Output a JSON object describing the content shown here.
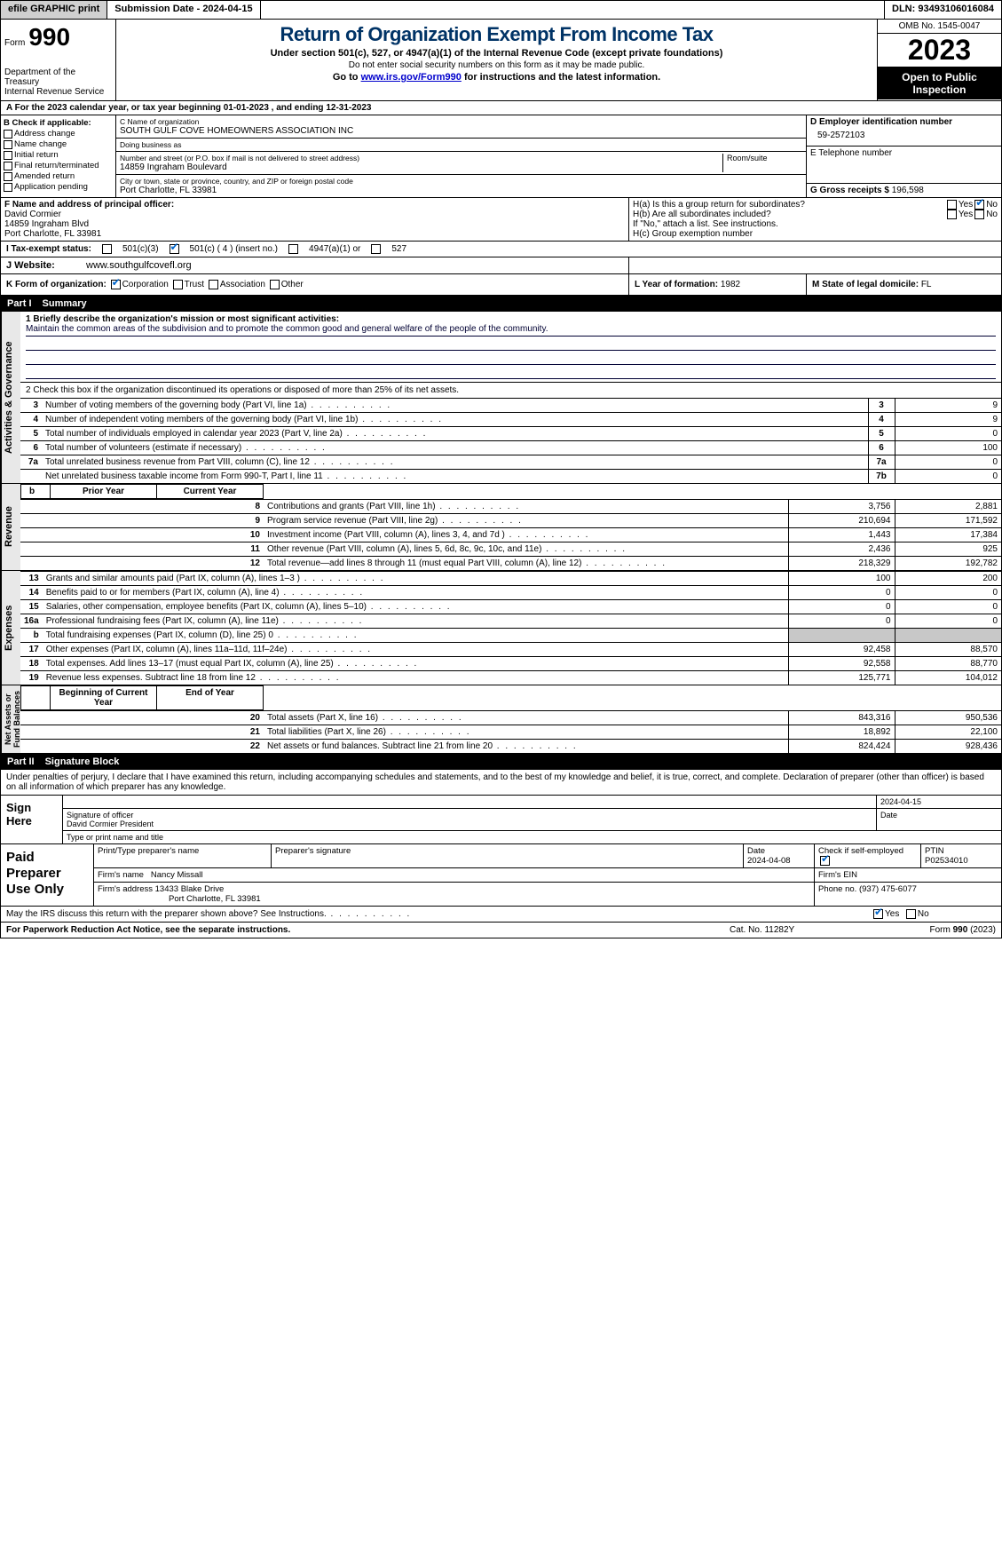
{
  "topbar": {
    "efile_btn": "efile GRAPHIC print",
    "submission": "Submission Date - 2024-04-15",
    "dln": "DLN: 93493106016084"
  },
  "header": {
    "form_label": "Form",
    "form_num": "990",
    "dept": "Department of the Treasury\nInternal Revenue Service",
    "title": "Return of Organization Exempt From Income Tax",
    "sub1": "Under section 501(c), 527, or 4947(a)(1) of the Internal Revenue Code (except private foundations)",
    "sub2": "Do not enter social security numbers on this form as it may be made public.",
    "sub3_pre": "Go to ",
    "sub3_link": "www.irs.gov/Form990",
    "sub3_post": " for instructions and the latest information.",
    "omb": "OMB No. 1545-0047",
    "year": "2023",
    "inspect": "Open to Public Inspection"
  },
  "row_a": "A For the 2023 calendar year, or tax year beginning 01-01-2023   , and ending 12-31-2023",
  "check_b": {
    "lbl": "B Check if applicable:",
    "items": [
      "Address change",
      "Name change",
      "Initial return",
      "Final return/terminated",
      "Amended return",
      "Application pending"
    ]
  },
  "org": {
    "name_lbl": "C Name of organization",
    "name": "SOUTH GULF COVE HOMEOWNERS ASSOCIATION INC",
    "dba_lbl": "Doing business as",
    "dba": "",
    "street_lbl": "Number and street (or P.O. box if mail is not delivered to street address)",
    "street": "14859 Ingraham Boulevard",
    "room_lbl": "Room/suite",
    "city_lbl": "City or town, state or province, country, and ZIP or foreign postal code",
    "city": "Port Charlotte, FL  33981"
  },
  "d": {
    "lbl": "D Employer identification number",
    "val": "59-2572103"
  },
  "e": {
    "lbl": "E Telephone number",
    "val": ""
  },
  "g": {
    "lbl": "G Gross receipts $",
    "val": "196,598"
  },
  "f": {
    "lbl": "F  Name and address of principal officer:",
    "name": "David Cormier",
    "line1": "14859 Ingraham Blvd",
    "line2": "Port Charlotte, FL  33981"
  },
  "h": {
    "a_lbl": "H(a)  Is this a group return for subordinates?",
    "a_yes": "Yes",
    "a_no": "No",
    "b_lbl": "H(b)  Are all subordinates included?",
    "b_note": "If \"No,\" attach a list. See instructions.",
    "c_lbl": "H(c)  Group exemption number"
  },
  "i": {
    "lbl": "I   Tax-exempt status:",
    "o1": "501(c)(3)",
    "o2": "501(c) ( 4 ) (insert no.)",
    "o3": "4947(a)(1) or",
    "o4": "527"
  },
  "j": {
    "lbl": "J   Website:",
    "val": "www.southgulfcovefl.org"
  },
  "k": {
    "lbl": "K Form of organization:",
    "o1": "Corporation",
    "o2": "Trust",
    "o3": "Association",
    "o4": "Other"
  },
  "l": {
    "lbl": "L Year of formation:",
    "val": "1982"
  },
  "m": {
    "lbl": "M State of legal domicile:",
    "val": "FL"
  },
  "part1": {
    "lbl": "Part I",
    "title": "Summary"
  },
  "mission": {
    "lbl": "1   Briefly describe the organization's mission or most significant activities:",
    "txt": "Maintain the common areas of the subdivision and to promote the common good and general welfare of the people of the community."
  },
  "line2": "2   Check this box      if the organization discontinued its operations or disposed of more than 25% of its net assets.",
  "gov_rows": [
    {
      "n": "3",
      "d": "Number of voting members of the governing body (Part VI, line 1a)",
      "ln": "3",
      "v": "9"
    },
    {
      "n": "4",
      "d": "Number of independent voting members of the governing body (Part VI, line 1b)",
      "ln": "4",
      "v": "9"
    },
    {
      "n": "5",
      "d": "Total number of individuals employed in calendar year 2023 (Part V, line 2a)",
      "ln": "5",
      "v": "0"
    },
    {
      "n": "6",
      "d": "Total number of volunteers (estimate if necessary)",
      "ln": "6",
      "v": "100"
    },
    {
      "n": "7a",
      "d": "Total unrelated business revenue from Part VIII, column (C), line 12",
      "ln": "7a",
      "v": "0"
    },
    {
      "n": "",
      "d": "Net unrelated business taxable income from Form 990-T, Part I, line 11",
      "ln": "7b",
      "v": "0"
    }
  ],
  "rev_hdr": {
    "b": "b",
    "py": "Prior Year",
    "cy": "Current Year"
  },
  "rev_rows": [
    {
      "n": "8",
      "d": "Contributions and grants (Part VIII, line 1h)",
      "py": "3,756",
      "cy": "2,881"
    },
    {
      "n": "9",
      "d": "Program service revenue (Part VIII, line 2g)",
      "py": "210,694",
      "cy": "171,592"
    },
    {
      "n": "10",
      "d": "Investment income (Part VIII, column (A), lines 3, 4, and 7d )",
      "py": "1,443",
      "cy": "17,384"
    },
    {
      "n": "11",
      "d": "Other revenue (Part VIII, column (A), lines 5, 6d, 8c, 9c, 10c, and 11e)",
      "py": "2,436",
      "cy": "925"
    },
    {
      "n": "12",
      "d": "Total revenue—add lines 8 through 11 (must equal Part VIII, column (A), line 12)",
      "py": "218,329",
      "cy": "192,782"
    }
  ],
  "exp_rows": [
    {
      "n": "13",
      "d": "Grants and similar amounts paid (Part IX, column (A), lines 1–3 )",
      "py": "100",
      "cy": "200"
    },
    {
      "n": "14",
      "d": "Benefits paid to or for members (Part IX, column (A), line 4)",
      "py": "0",
      "cy": "0"
    },
    {
      "n": "15",
      "d": "Salaries, other compensation, employee benefits (Part IX, column (A), lines 5–10)",
      "py": "0",
      "cy": "0"
    },
    {
      "n": "16a",
      "d": "Professional fundraising fees (Part IX, column (A), line 11e)",
      "py": "0",
      "cy": "0"
    },
    {
      "n": "b",
      "d": "Total fundraising expenses (Part IX, column (D), line 25) 0",
      "py": "",
      "cy": "",
      "shade": true
    },
    {
      "n": "17",
      "d": "Other expenses (Part IX, column (A), lines 11a–11d, 11f–24e)",
      "py": "92,458",
      "cy": "88,570"
    },
    {
      "n": "18",
      "d": "Total expenses. Add lines 13–17 (must equal Part IX, column (A), line 25)",
      "py": "92,558",
      "cy": "88,770"
    },
    {
      "n": "19",
      "d": "Revenue less expenses. Subtract line 18 from line 12",
      "py": "125,771",
      "cy": "104,012"
    }
  ],
  "net_hdr": {
    "by": "Beginning of Current Year",
    "ey": "End of Year"
  },
  "net_rows": [
    {
      "n": "20",
      "d": "Total assets (Part X, line 16)",
      "py": "843,316",
      "cy": "950,536"
    },
    {
      "n": "21",
      "d": "Total liabilities (Part X, line 26)",
      "py": "18,892",
      "cy": "22,100"
    },
    {
      "n": "22",
      "d": "Net assets or fund balances. Subtract line 21 from line 20",
      "py": "824,424",
      "cy": "928,436"
    }
  ],
  "vtabs": {
    "gov": "Activities & Governance",
    "rev": "Revenue",
    "exp": "Expenses",
    "net": "Net Assets or\nFund Balances"
  },
  "part2": {
    "lbl": "Part II",
    "title": "Signature Block"
  },
  "perjury": "Under penalties of perjury, I declare that I have examined this return, including accompanying schedules and statements, and to the best of my knowledge and belief, it is true, correct, and complete. Declaration of preparer (other than officer) is based on all information of which preparer has any knowledge.",
  "sign": {
    "lbl": "Sign Here",
    "sig_lbl": "Signature of officer",
    "name": "David Cormier  President",
    "date_lbl": "Date",
    "date": "2024-04-15",
    "type_lbl": "Type or print name and title"
  },
  "prep": {
    "lbl": "Paid Preparer Use Only",
    "name_lbl": "Print/Type preparer's name",
    "sig_lbl": "Preparer's signature",
    "date_lbl": "Date",
    "date": "2024-04-08",
    "self_lbl": "Check        if self-employed",
    "ptin_lbl": "PTIN",
    "ptin": "P02534010",
    "firm_lbl": "Firm's name",
    "firm": "Nancy Missall",
    "ein_lbl": "Firm's EIN",
    "addr_lbl": "Firm's address",
    "addr1": "13433 Blake Drive",
    "addr2": "Port Charlotte, FL  33981",
    "phone_lbl": "Phone no.",
    "phone": "(937) 475-6077"
  },
  "may": {
    "txt": "May the IRS discuss this return with the preparer shown above? See Instructions.",
    "yes": "Yes",
    "no": "No"
  },
  "footer": {
    "l": "For Paperwork Reduction Act Notice, see the separate instructions.",
    "m": "Cat. No. 11282Y",
    "r": "Form 990 (2023)"
  }
}
